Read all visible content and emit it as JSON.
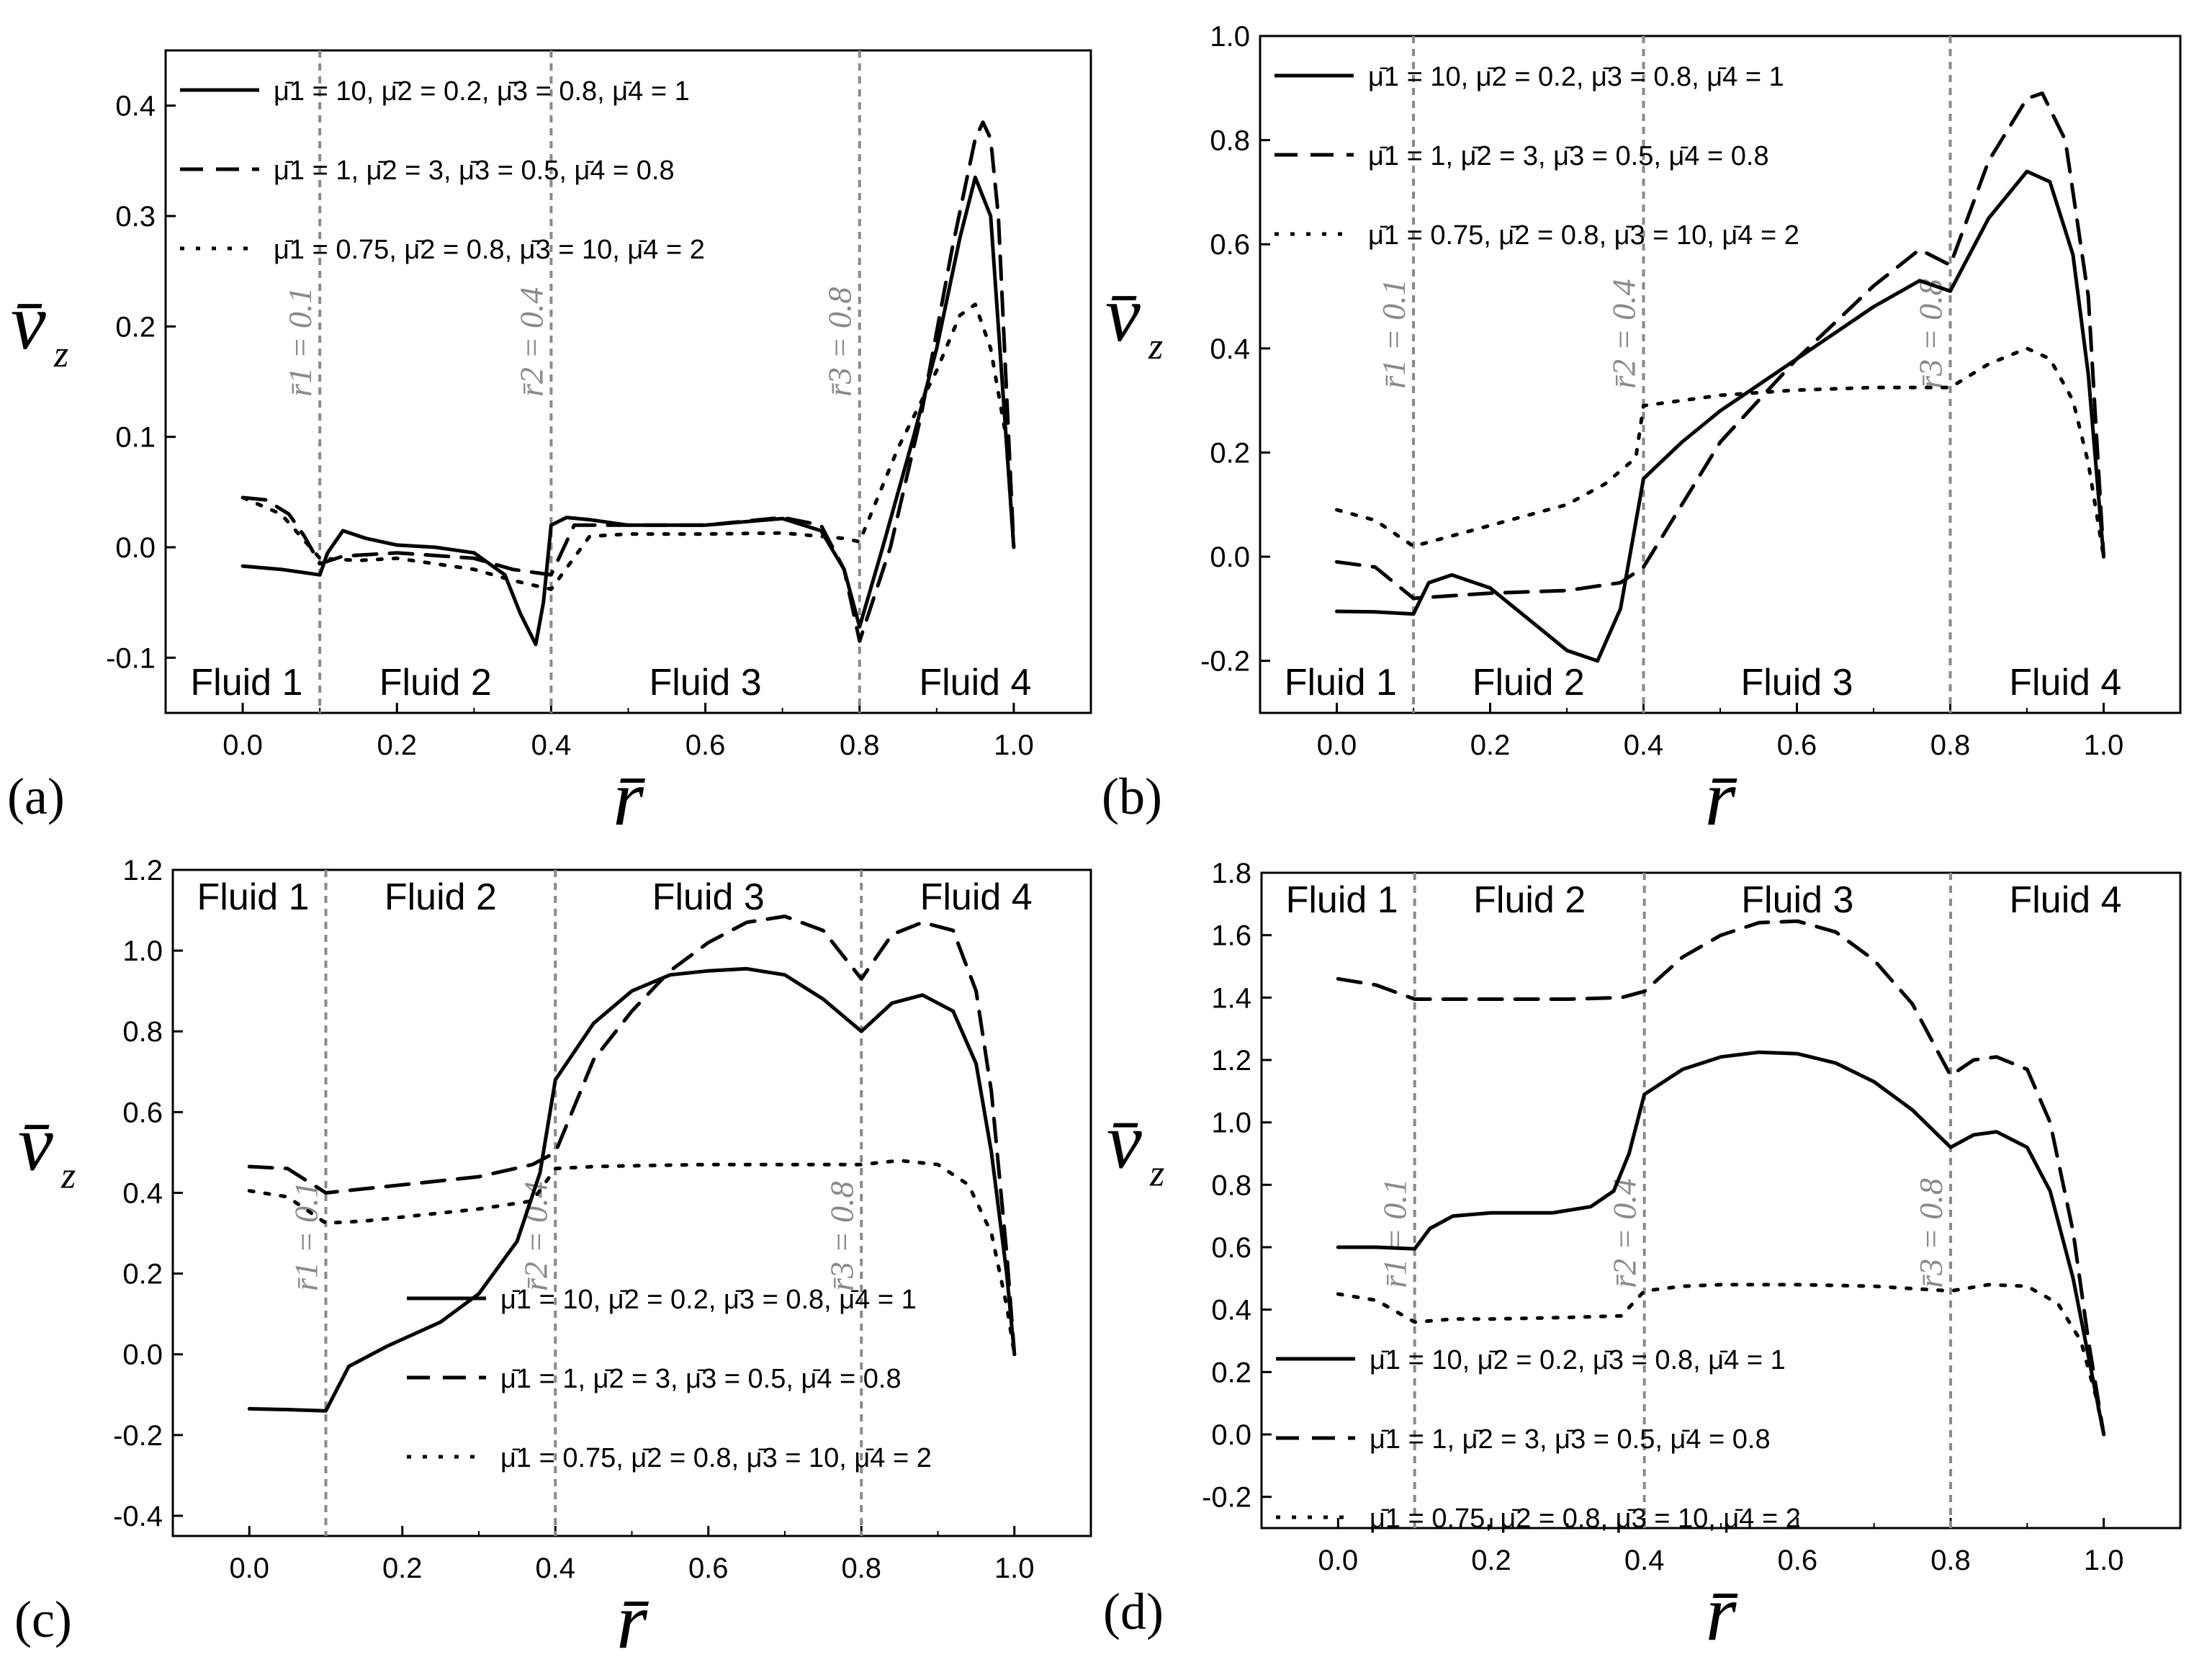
{
  "figure": {
    "x_axis_label": "r̄",
    "y_axis_label": "v̄",
    "y_axis_subscript": "z",
    "fluid_labels": [
      "Fluid 1",
      "Fluid 2",
      "Fluid 3",
      "Fluid 4"
    ],
    "interface_labels": [
      "r̄1 = 0.1",
      "r̄2 = 0.4",
      "r̄3 = 0.8"
    ],
    "legend_entries": [
      "μ̄1 = 10,    μ̄2 = 0.2,  μ̄3 = 0.8,  μ̄4 = 1",
      "μ̄1 = 1,      μ̄2 = 3,     μ̄3 = 0.5,  μ̄4 = 0.8",
      "μ̄1 = 0.75,  μ̄2 = 0.8,  μ̄3 = 10,   μ̄4 = 2"
    ],
    "colors": {
      "axis": "#000000",
      "interface": "#8a8a8a",
      "series": "#000000"
    }
  },
  "chart_data": [
    {
      "panel_label": "(a)",
      "type": "line",
      "xlim": [
        -0.1,
        1.1
      ],
      "ylim": [
        -0.15,
        0.45
      ],
      "xticks": [
        "0.0",
        "0.2",
        "0.4",
        "0.6",
        "0.8",
        "1.0"
      ],
      "yticks": [
        "-0.1",
        "0.0",
        "0.1",
        "0.2",
        "0.3",
        "0.4"
      ],
      "interfaces": [
        0.1,
        0.4,
        0.8
      ],
      "legend_position": "top-left",
      "fluid_label_position": "bottom",
      "series": [
        {
          "name": "μ̄1 = 10, μ̄2 = 0.2, μ̄3 = 0.8, μ̄4 = 1",
          "style": "solid",
          "x": [
            0,
            0.05,
            0.1,
            0.11,
            0.13,
            0.16,
            0.2,
            0.25,
            0.3,
            0.34,
            0.36,
            0.38,
            0.39,
            0.4,
            0.42,
            0.45,
            0.5,
            0.6,
            0.7,
            0.75,
            0.78,
            0.8,
            0.83,
            0.87,
            0.9,
            0.93,
            0.95,
            0.97,
            0.98,
            0.99,
            1.0
          ],
          "y": [
            -0.017,
            -0.02,
            -0.025,
            -0.005,
            0.015,
            0.008,
            0.002,
            0.0,
            -0.005,
            -0.025,
            -0.06,
            -0.088,
            -0.05,
            0.02,
            0.027,
            0.025,
            0.02,
            0.02,
            0.026,
            0.015,
            -0.02,
            -0.072,
            0.0,
            0.1,
            0.18,
            0.28,
            0.335,
            0.3,
            0.2,
            0.1,
            0.0
          ]
        },
        {
          "name": "μ̄1 = 1, μ̄2 = 3, μ̄3 = 0.5, μ̄4 = 0.8",
          "style": "dashed",
          "x": [
            0,
            0.03,
            0.06,
            0.08,
            0.1,
            0.13,
            0.2,
            0.3,
            0.35,
            0.4,
            0.43,
            0.5,
            0.6,
            0.7,
            0.75,
            0.78,
            0.8,
            0.84,
            0.88,
            0.92,
            0.95,
            0.96,
            0.97,
            0.98,
            0.99,
            1.0
          ],
          "y": [
            0.045,
            0.043,
            0.03,
            0.01,
            -0.015,
            -0.008,
            -0.005,
            -0.01,
            -0.02,
            -0.025,
            0.02,
            0.02,
            0.02,
            0.027,
            0.02,
            -0.02,
            -0.085,
            0.0,
            0.12,
            0.27,
            0.37,
            0.385,
            0.37,
            0.3,
            0.15,
            0.0
          ]
        },
        {
          "name": "μ̄1 = 0.75, μ̄2 = 0.8, μ̄3 = 10, μ̄4 = 2",
          "style": "dotted",
          "x": [
            0,
            0.05,
            0.1,
            0.15,
            0.2,
            0.3,
            0.35,
            0.4,
            0.45,
            0.5,
            0.6,
            0.7,
            0.78,
            0.8,
            0.85,
            0.9,
            0.93,
            0.95,
            0.97,
            0.99,
            1.0
          ],
          "y": [
            0.045,
            0.03,
            -0.01,
            -0.012,
            -0.01,
            -0.02,
            -0.03,
            -0.038,
            0.01,
            0.012,
            0.012,
            0.013,
            0.008,
            0.005,
            0.09,
            0.16,
            0.21,
            0.22,
            0.18,
            0.1,
            0.0
          ]
        }
      ]
    },
    {
      "panel_label": "(b)",
      "type": "line",
      "xlim": [
        -0.1,
        1.1
      ],
      "ylim": [
        -0.3,
        1.0
      ],
      "xticks": [
        "0.0",
        "0.2",
        "0.4",
        "0.6",
        "0.8",
        "1.0"
      ],
      "yticks": [
        "-0.2",
        "0.0",
        "0.2",
        "0.4",
        "0.6",
        "0.8",
        "1.0"
      ],
      "interfaces": [
        0.1,
        0.4,
        0.8
      ],
      "legend_position": "top-left",
      "fluid_label_position": "bottom",
      "series": [
        {
          "name": "μ̄1 = 10, μ̄2 = 0.2, μ̄3 = 0.8, μ̄4 = 1",
          "style": "solid",
          "x": [
            0,
            0.05,
            0.1,
            0.12,
            0.15,
            0.2,
            0.25,
            0.3,
            0.34,
            0.37,
            0.4,
            0.45,
            0.5,
            0.6,
            0.7,
            0.76,
            0.8,
            0.85,
            0.9,
            0.93,
            0.96,
            0.98,
            1.0
          ],
          "y": [
            -0.105,
            -0.106,
            -0.11,
            -0.05,
            -0.035,
            -0.06,
            -0.12,
            -0.18,
            -0.2,
            -0.1,
            0.15,
            0.22,
            0.28,
            0.38,
            0.48,
            0.53,
            0.51,
            0.65,
            0.74,
            0.72,
            0.58,
            0.35,
            0.0
          ]
        },
        {
          "name": "μ̄1 = 1, μ̄2 = 3, μ̄3 = 0.5, μ̄4 = 0.8",
          "style": "dashed",
          "x": [
            0,
            0.05,
            0.1,
            0.15,
            0.2,
            0.3,
            0.37,
            0.4,
            0.45,
            0.5,
            0.6,
            0.7,
            0.76,
            0.8,
            0.85,
            0.9,
            0.92,
            0.95,
            0.98,
            1.0
          ],
          "y": [
            -0.01,
            -0.02,
            -0.08,
            -0.075,
            -0.07,
            -0.065,
            -0.05,
            -0.02,
            0.1,
            0.22,
            0.38,
            0.52,
            0.59,
            0.56,
            0.76,
            0.88,
            0.89,
            0.8,
            0.5,
            0.0
          ]
        },
        {
          "name": "μ̄1 = 0.75, μ̄2 = 0.8, μ̄3 = 10, μ̄4 = 2",
          "style": "dotted",
          "x": [
            0,
            0.05,
            0.1,
            0.15,
            0.2,
            0.3,
            0.35,
            0.39,
            0.4,
            0.45,
            0.5,
            0.6,
            0.7,
            0.8,
            0.85,
            0.9,
            0.93,
            0.96,
            0.98,
            1.0
          ],
          "y": [
            0.09,
            0.07,
            0.02,
            0.04,
            0.06,
            0.1,
            0.14,
            0.19,
            0.29,
            0.3,
            0.31,
            0.32,
            0.325,
            0.325,
            0.37,
            0.4,
            0.38,
            0.3,
            0.18,
            0.0
          ]
        }
      ]
    },
    {
      "panel_label": "(c)",
      "type": "line",
      "xlim": [
        -0.1,
        1.1
      ],
      "ylim": [
        -0.45,
        1.2
      ],
      "xticks": [
        "0.0",
        "0.2",
        "0.4",
        "0.6",
        "0.8",
        "1.0"
      ],
      "yticks": [
        "-0.4",
        "-0.2",
        "0.0",
        "0.2",
        "0.4",
        "0.6",
        "0.8",
        "1.0",
        "1.2"
      ],
      "interfaces": [
        0.1,
        0.4,
        0.8
      ],
      "legend_position": "bottom-right",
      "fluid_label_position": "top",
      "series": [
        {
          "name": "μ̄1 = 10, μ̄2 = 0.2, μ̄3 = 0.8, μ̄4 = 1",
          "style": "solid",
          "x": [
            0,
            0.05,
            0.1,
            0.13,
            0.18,
            0.25,
            0.3,
            0.35,
            0.38,
            0.4,
            0.45,
            0.5,
            0.55,
            0.6,
            0.65,
            0.7,
            0.75,
            0.8,
            0.84,
            0.88,
            0.92,
            0.95,
            0.97,
            0.99,
            1.0
          ],
          "y": [
            -0.135,
            -0.137,
            -0.14,
            -0.03,
            0.02,
            0.08,
            0.15,
            0.28,
            0.45,
            0.68,
            0.82,
            0.9,
            0.94,
            0.95,
            0.955,
            0.94,
            0.88,
            0.8,
            0.87,
            0.89,
            0.85,
            0.72,
            0.5,
            0.2,
            0.0
          ]
        },
        {
          "name": "μ̄1 = 1, μ̄2 = 3, μ̄3 = 0.5, μ̄4 = 0.8",
          "style": "dashed",
          "x": [
            0,
            0.05,
            0.1,
            0.15,
            0.2,
            0.3,
            0.37,
            0.4,
            0.45,
            0.5,
            0.55,
            0.6,
            0.65,
            0.7,
            0.75,
            0.8,
            0.84,
            0.88,
            0.92,
            0.95,
            0.97,
            0.99,
            1.0
          ],
          "y": [
            0.465,
            0.46,
            0.4,
            0.41,
            0.42,
            0.44,
            0.47,
            0.5,
            0.73,
            0.85,
            0.95,
            1.02,
            1.07,
            1.085,
            1.05,
            0.93,
            1.04,
            1.07,
            1.05,
            0.9,
            0.65,
            0.25,
            0.0
          ]
        },
        {
          "name": "μ̄1 = 0.75, μ̄2 = 0.8, μ̄3 = 10, μ̄4 = 2",
          "style": "dotted",
          "x": [
            0,
            0.05,
            0.1,
            0.15,
            0.2,
            0.3,
            0.37,
            0.4,
            0.45,
            0.5,
            0.6,
            0.7,
            0.8,
            0.85,
            0.9,
            0.94,
            0.97,
            0.99,
            1.0
          ],
          "y": [
            0.405,
            0.39,
            0.325,
            0.33,
            0.34,
            0.36,
            0.38,
            0.46,
            0.465,
            0.467,
            0.47,
            0.47,
            0.47,
            0.48,
            0.47,
            0.42,
            0.3,
            0.12,
            0.0
          ]
        }
      ]
    },
    {
      "panel_label": "(d)",
      "type": "line",
      "xlim": [
        -0.1,
        1.1
      ],
      "ylim": [
        -0.3,
        1.8
      ],
      "xticks": [
        "0.0",
        "0.2",
        "0.4",
        "0.6",
        "0.8",
        "1.0"
      ],
      "yticks": [
        "-0.2",
        "0.0",
        "0.2",
        "0.4",
        "0.6",
        "0.8",
        "1.0",
        "1.2",
        "1.4",
        "1.6",
        "1.8"
      ],
      "interfaces": [
        0.1,
        0.4,
        0.8
      ],
      "legend_position": "bottom-left",
      "fluid_label_position": "top",
      "series": [
        {
          "name": "μ̄1 = 10, μ̄2 = 0.2, μ̄3 = 0.8, μ̄4 = 1",
          "style": "solid",
          "x": [
            0,
            0.05,
            0.1,
            0.12,
            0.15,
            0.2,
            0.28,
            0.33,
            0.36,
            0.38,
            0.4,
            0.45,
            0.5,
            0.55,
            0.6,
            0.65,
            0.7,
            0.75,
            0.8,
            0.83,
            0.86,
            0.9,
            0.93,
            0.96,
            0.98,
            1.0
          ],
          "y": [
            0.6,
            0.6,
            0.595,
            0.66,
            0.7,
            0.71,
            0.71,
            0.73,
            0.78,
            0.9,
            1.09,
            1.17,
            1.21,
            1.225,
            1.22,
            1.19,
            1.13,
            1.04,
            0.92,
            0.96,
            0.97,
            0.92,
            0.78,
            0.5,
            0.25,
            0.0
          ]
        },
        {
          "name": "μ̄1 = 1, μ̄2 = 3, μ̄3 = 0.5, μ̄4 = 0.8",
          "style": "dashed",
          "x": [
            0,
            0.05,
            0.1,
            0.15,
            0.2,
            0.3,
            0.37,
            0.4,
            0.45,
            0.5,
            0.55,
            0.6,
            0.65,
            0.7,
            0.75,
            0.8,
            0.83,
            0.86,
            0.9,
            0.93,
            0.96,
            0.98,
            1.0
          ],
          "y": [
            1.46,
            1.44,
            1.395,
            1.395,
            1.395,
            1.395,
            1.4,
            1.42,
            1.53,
            1.6,
            1.64,
            1.645,
            1.61,
            1.52,
            1.38,
            1.15,
            1.2,
            1.21,
            1.17,
            1.0,
            0.65,
            0.3,
            0.0
          ]
        },
        {
          "name": "μ̄1 = 0.75, μ̄2 = 0.8, μ̄3 = 10, μ̄4 = 2",
          "style": "dotted",
          "x": [
            0,
            0.05,
            0.1,
            0.15,
            0.2,
            0.3,
            0.37,
            0.4,
            0.45,
            0.5,
            0.6,
            0.7,
            0.8,
            0.85,
            0.9,
            0.94,
            0.97,
            0.99,
            1.0
          ],
          "y": [
            0.45,
            0.43,
            0.36,
            0.37,
            0.37,
            0.375,
            0.38,
            0.46,
            0.475,
            0.48,
            0.48,
            0.475,
            0.46,
            0.48,
            0.475,
            0.42,
            0.3,
            0.12,
            0.0
          ]
        }
      ]
    }
  ]
}
